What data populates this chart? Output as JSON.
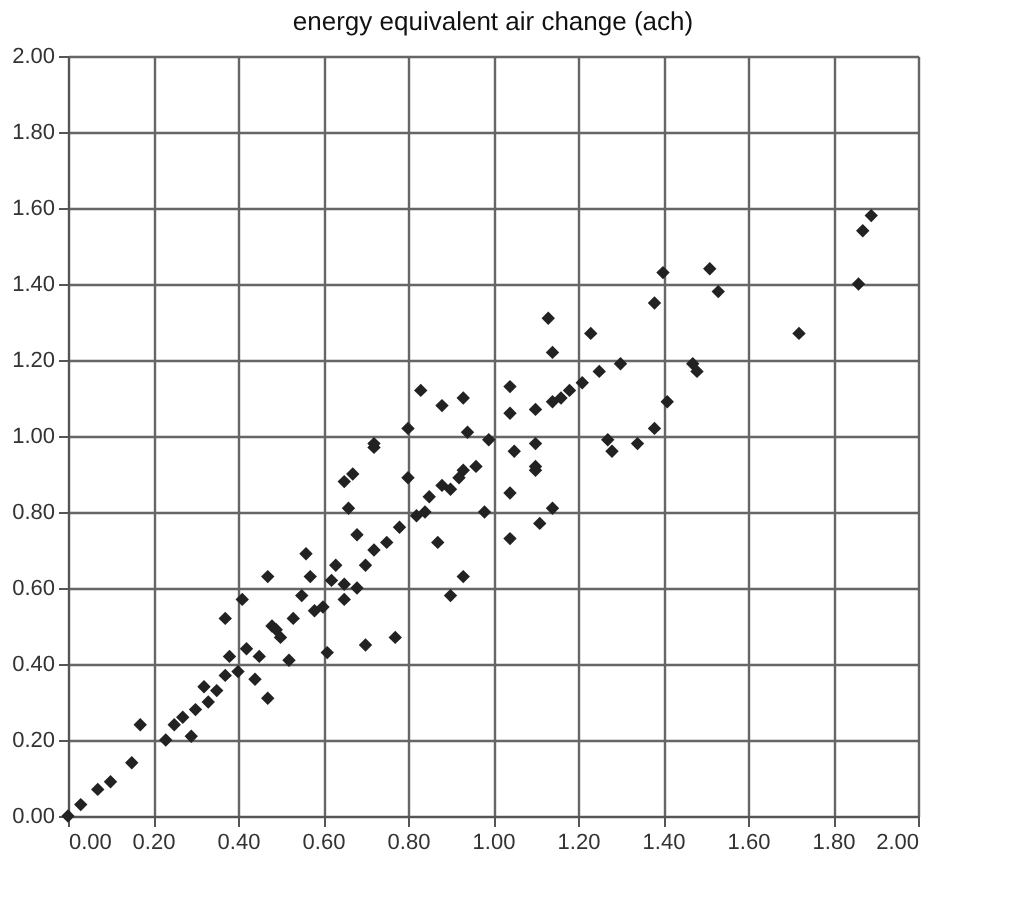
{
  "chart_data": {
    "type": "scatter",
    "title": "energy equivalent air change (ach)",
    "x": [
      0,
      0.03,
      0.07,
      0.1,
      0.15,
      0.17,
      0.23,
      0.29,
      0.27,
      0.32,
      0.37,
      0.37,
      0.41,
      0.47,
      0.47,
      0.49,
      0.52,
      0.56,
      0.58,
      0.61,
      0.65,
      0.65,
      0.67,
      0.66,
      0.7,
      0.72,
      0.68,
      0.72,
      0.77,
      0.8,
      0.84,
      0.87,
      0.9,
      0.93,
      0.88,
      0.93,
      0.96,
      0.35,
      0.4,
      0.42,
      0.45,
      0.5,
      0.53,
      0.55,
      0.6,
      0.62,
      0.65,
      0.7,
      0.75,
      0.78,
      0.82,
      0.85,
      0.9,
      0.92,
      0.33,
      0.3,
      0.25,
      0.38,
      0.44,
      0.48,
      0.57,
      0.63,
      0.68,
      0.83,
      0.88,
      0.93,
      0.8,
      0.94,
      0.72,
      0.98,
      0.99,
      1.04,
      1.04,
      1.04,
      1.05,
      1.04,
      1.1,
      1.1,
      1.1,
      1.11,
      1.14,
      1.1,
      1.14,
      1.16,
      1.18,
      1.21,
      1.25,
      1.27,
      1.28,
      1.34,
      1.38,
      1.41,
      1.47,
      1.48,
      1.3,
      1.23,
      1.14,
      1.13,
      1.38,
      1.4,
      1.51,
      1.53,
      1.72,
      1.86,
      1.87,
      1.89
    ],
    "values": [
      0,
      0.03,
      0.07,
      0.09,
      0.14,
      0.24,
      0.2,
      0.21,
      0.26,
      0.34,
      0.37,
      0.52,
      0.57,
      0.63,
      0.31,
      0.49,
      0.41,
      0.69,
      0.54,
      0.43,
      0.61,
      0.88,
      0.9,
      0.81,
      0.45,
      0.97,
      0.74,
      0.7,
      0.47,
      0.89,
      0.8,
      0.72,
      0.58,
      0.63,
      0.87,
      0.91,
      0.92,
      0.33,
      0.38,
      0.44,
      0.42,
      0.47,
      0.52,
      0.58,
      0.55,
      0.62,
      0.57,
      0.66,
      0.72,
      0.76,
      0.79,
      0.84,
      0.86,
      0.89,
      0.3,
      0.28,
      0.24,
      0.42,
      0.36,
      0.5,
      0.63,
      0.66,
      0.6,
      1.12,
      1.08,
      1.1,
      1.02,
      1.01,
      0.98,
      0.8,
      0.99,
      0.73,
      0.85,
      1.13,
      0.96,
      1.06,
      0.91,
      0.98,
      0.92,
      0.77,
      0.81,
      1.07,
      1.09,
      1.1,
      1.12,
      1.14,
      1.17,
      0.99,
      0.96,
      0.98,
      1.02,
      1.09,
      1.19,
      1.17,
      1.19,
      1.27,
      1.22,
      1.31,
      1.35,
      1.43,
      1.44,
      1.38,
      1.27,
      1.4,
      1.54,
      1.58
    ],
    "color": "#222222",
    "marker": "diamond",
    "grid": true,
    "xlim": [
      0,
      2
    ],
    "ylim": [
      0,
      2
    ],
    "xticks": [
      {
        "value": 0,
        "label": "0.00"
      },
      {
        "value": 0.2,
        "label": "0.20"
      },
      {
        "value": 0.4,
        "label": "0.40"
      },
      {
        "value": 0.6,
        "label": "0.60"
      },
      {
        "value": 0.8,
        "label": "0.80"
      },
      {
        "value": 1,
        "label": "1.00"
      },
      {
        "value": 1.2,
        "label": "1.20"
      },
      {
        "value": 1.4,
        "label": "1.40"
      },
      {
        "value": 1.6,
        "label": "1.60"
      },
      {
        "value": 1.8,
        "label": "1.80"
      },
      {
        "value": 2,
        "label": "2.00"
      }
    ],
    "yticks": [
      {
        "value": 0,
        "label": "0.00"
      },
      {
        "value": 0.2,
        "label": "0.20"
      },
      {
        "value": 0.4,
        "label": "0.40"
      },
      {
        "value": 0.6,
        "label": "0.60"
      },
      {
        "value": 0.8,
        "label": "0.80"
      },
      {
        "value": 1,
        "label": "1.00"
      },
      {
        "value": 1.2,
        "label": "1.20"
      },
      {
        "value": 1.4,
        "label": "1.40"
      },
      {
        "value": 1.6,
        "label": "1.60"
      },
      {
        "value": 1.8,
        "label": "1.80"
      },
      {
        "value": 2,
        "label": "2.00"
      }
    ]
  }
}
